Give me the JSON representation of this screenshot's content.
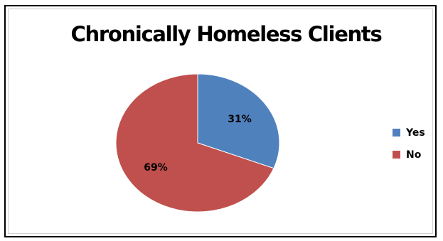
{
  "chart_data": {
    "type": "pie",
    "title": "Chronically Homeless Clients",
    "categories": [
      "Yes",
      "No"
    ],
    "values": [
      31,
      69
    ],
    "data_labels": [
      "31%",
      "69%"
    ],
    "colors": [
      "#4f81bd",
      "#c0504d"
    ],
    "legend_position": "right"
  }
}
